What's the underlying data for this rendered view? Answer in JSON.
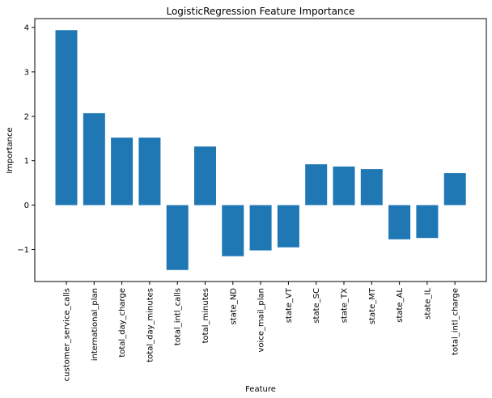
{
  "chart_data": {
    "type": "bar",
    "title": "LogisticRegression Feature Importance",
    "xlabel": "Feature",
    "ylabel": "Importance",
    "categories": [
      "customer_service_calls",
      "international_plan",
      "total_day_charge",
      "total_day_minutes",
      "total_intl_calls",
      "total_minutes",
      "state_ND",
      "voice_mail_plan",
      "state_VT",
      "state_SC",
      "state_TX",
      "state_MT",
      "state_AL",
      "state_IL",
      "total_intl_charge"
    ],
    "values": [
      3.94,
      2.07,
      1.52,
      1.52,
      -1.46,
      1.32,
      -1.15,
      -1.02,
      -0.95,
      0.92,
      0.87,
      0.81,
      -0.77,
      -0.74,
      0.72
    ],
    "ylim": [
      -1.72,
      4.2
    ],
    "yticks": [
      -1,
      0,
      1,
      2,
      3,
      4
    ],
    "ytick_labels": [
      "−1",
      "0",
      "1",
      "2",
      "3",
      "4"
    ],
    "bar_color": "#1f77b4",
    "grid": false,
    "legend": "none"
  }
}
